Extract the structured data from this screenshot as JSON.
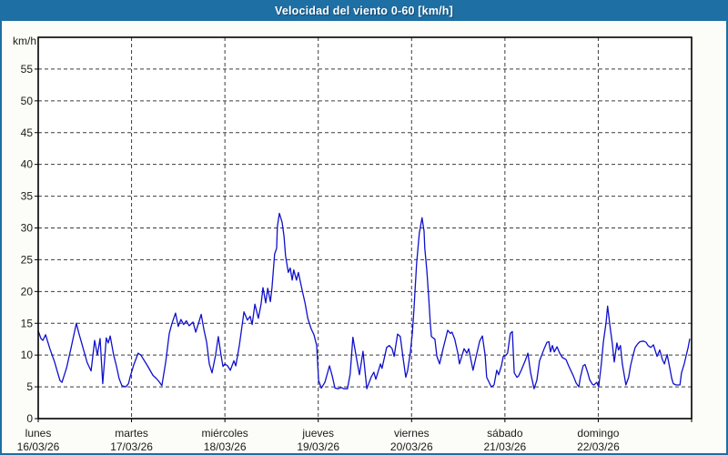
{
  "window": {
    "title": "Velocidad del viento 0-60 [km/h]"
  },
  "colors": {
    "titlebar": "#1d6fa4",
    "border": "#1d6fa4",
    "background": "#fcfcf8",
    "plot_background": "#ffffff",
    "frame": "#000000",
    "grid": "#3c3c3c",
    "line": "#1010cc",
    "text": "#1a1a1a"
  },
  "chart_data": {
    "type": "line",
    "title": "Velocidad del viento 0-60 [km/h]",
    "ylabel": "km/h",
    "xlabel": "",
    "ylim": [
      0,
      60
    ],
    "xlim": [
      0,
      168
    ],
    "grid": true,
    "legend_position": "none",
    "y_tick_labels": [
      0,
      5,
      10,
      15,
      20,
      25,
      30,
      35,
      40,
      45,
      50,
      55
    ],
    "x_unit": "hours",
    "day_labels": [
      {
        "name": "lunes",
        "date": "16/03/26",
        "hour": 0
      },
      {
        "name": "martes",
        "date": "17/03/26",
        "hour": 24
      },
      {
        "name": "miércoles",
        "date": "18/03/26",
        "hour": 48
      },
      {
        "name": "jueves",
        "date": "19/03/26",
        "hour": 72
      },
      {
        "name": "viernes",
        "date": "20/03/26",
        "hour": 96
      },
      {
        "name": "sábado",
        "date": "21/03/26",
        "hour": 120
      },
      {
        "name": "domingo",
        "date": "22/03/26",
        "hour": 144
      }
    ],
    "series": [
      {
        "name": "Velocidad del viento",
        "color": "#1010cc",
        "points": [
          [
            0,
            13.8
          ],
          [
            0.7,
            12.6
          ],
          [
            1.2,
            12.3
          ],
          [
            1.9,
            13.2
          ],
          [
            3.0,
            11.0
          ],
          [
            4.2,
            8.9
          ],
          [
            5.1,
            7.0
          ],
          [
            5.6,
            6.0
          ],
          [
            6.1,
            5.7
          ],
          [
            7.3,
            8.0
          ],
          [
            8.4,
            11.0
          ],
          [
            9.1,
            13.0
          ],
          [
            9.8,
            15.0
          ],
          [
            10.5,
            13.3
          ],
          [
            11.2,
            11.8
          ],
          [
            12.6,
            8.8
          ],
          [
            13.6,
            7.5
          ],
          [
            14.5,
            12.3
          ],
          [
            15.2,
            10.0
          ],
          [
            15.9,
            12.6
          ],
          [
            16.6,
            5.5
          ],
          [
            17.5,
            12.7
          ],
          [
            18.0,
            11.9
          ],
          [
            18.5,
            13.0
          ],
          [
            19.4,
            10.0
          ],
          [
            20.1,
            8.3
          ],
          [
            20.8,
            6.3
          ],
          [
            21.5,
            5.2
          ],
          [
            22.5,
            5.0
          ],
          [
            23.2,
            5.5
          ],
          [
            23.6,
            6.5
          ],
          [
            24.6,
            8.5
          ],
          [
            25.7,
            10.3
          ],
          [
            26.4,
            10.0
          ],
          [
            28.1,
            8.3
          ],
          [
            29.5,
            6.8
          ],
          [
            30.4,
            6.3
          ],
          [
            31.1,
            5.8
          ],
          [
            31.8,
            5.2
          ],
          [
            32.8,
            9.0
          ],
          [
            33.7,
            13.4
          ],
          [
            34.4,
            15.0
          ],
          [
            35.3,
            16.6
          ],
          [
            36.0,
            14.5
          ],
          [
            36.7,
            15.6
          ],
          [
            37.4,
            14.8
          ],
          [
            38.1,
            15.4
          ],
          [
            38.8,
            14.6
          ],
          [
            39.8,
            15.2
          ],
          [
            40.5,
            13.6
          ],
          [
            41.2,
            15.0
          ],
          [
            41.9,
            16.4
          ],
          [
            42.6,
            14.0
          ],
          [
            43.3,
            12.0
          ],
          [
            44.0,
            8.6
          ],
          [
            44.7,
            7.2
          ],
          [
            45.6,
            10.0
          ],
          [
            46.3,
            12.9
          ],
          [
            47.0,
            10.0
          ],
          [
            47.5,
            8.2
          ],
          [
            48.0,
            8.6
          ],
          [
            48.7,
            8.3
          ],
          [
            49.4,
            7.6
          ],
          [
            50.3,
            9.1
          ],
          [
            50.8,
            8.3
          ],
          [
            51.7,
            11.5
          ],
          [
            52.9,
            16.8
          ],
          [
            53.8,
            15.5
          ],
          [
            54.5,
            16.1
          ],
          [
            55.0,
            14.8
          ],
          [
            55.7,
            18.0
          ],
          [
            56.6,
            15.8
          ],
          [
            57.3,
            18.0
          ],
          [
            57.8,
            20.6
          ],
          [
            58.5,
            18.2
          ],
          [
            59.0,
            20.5
          ],
          [
            59.7,
            18.4
          ],
          [
            60.1,
            20.6
          ],
          [
            60.8,
            25.9
          ],
          [
            61.3,
            26.8
          ],
          [
            61.5,
            30.2
          ],
          [
            62.0,
            32.3
          ],
          [
            62.7,
            30.9
          ],
          [
            63.2,
            28.7
          ],
          [
            63.6,
            25.6
          ],
          [
            64.3,
            23.0
          ],
          [
            64.8,
            23.7
          ],
          [
            65.3,
            21.8
          ],
          [
            65.7,
            23.4
          ],
          [
            66.4,
            21.8
          ],
          [
            66.9,
            23.0
          ],
          [
            67.9,
            20.1
          ],
          [
            68.6,
            18.2
          ],
          [
            69.3,
            15.8
          ],
          [
            70.2,
            14.1
          ],
          [
            70.9,
            13.2
          ],
          [
            71.6,
            11.5
          ],
          [
            72.1,
            6.0
          ],
          [
            72.8,
            4.8
          ],
          [
            73.7,
            5.7
          ],
          [
            74.9,
            8.3
          ],
          [
            75.6,
            6.7
          ],
          [
            76.3,
            4.8
          ],
          [
            77.2,
            4.7
          ],
          [
            77.9,
            4.9
          ],
          [
            78.6,
            4.7
          ],
          [
            79.5,
            4.7
          ],
          [
            80.2,
            7.0
          ],
          [
            80.9,
            12.8
          ],
          [
            81.9,
            9.3
          ],
          [
            82.6,
            6.9
          ],
          [
            83.5,
            10.6
          ],
          [
            84.5,
            4.7
          ],
          [
            85.6,
            6.5
          ],
          [
            86.3,
            7.3
          ],
          [
            86.8,
            6.2
          ],
          [
            88.0,
            8.6
          ],
          [
            88.4,
            7.9
          ],
          [
            89.6,
            11.2
          ],
          [
            90.3,
            11.5
          ],
          [
            91.0,
            11.0
          ],
          [
            91.5,
            9.8
          ],
          [
            92.4,
            13.3
          ],
          [
            93.1,
            12.9
          ],
          [
            93.8,
            9.6
          ],
          [
            94.5,
            6.5
          ],
          [
            95.0,
            7.6
          ],
          [
            95.7,
            10.5
          ],
          [
            96.2,
            13.4
          ],
          [
            96.6,
            17.2
          ],
          [
            97.3,
            24.4
          ],
          [
            98.0,
            29.2
          ],
          [
            98.7,
            31.6
          ],
          [
            99.2,
            29.5
          ],
          [
            99.4,
            26.8
          ],
          [
            99.9,
            23.4
          ],
          [
            100.4,
            19.1
          ],
          [
            100.8,
            15.1
          ],
          [
            101.1,
            12.9
          ],
          [
            102.0,
            12.5
          ],
          [
            102.5,
            9.8
          ],
          [
            103.2,
            8.6
          ],
          [
            104.1,
            11.0
          ],
          [
            105.3,
            13.9
          ],
          [
            106.0,
            13.4
          ],
          [
            106.4,
            13.6
          ],
          [
            107.1,
            12.5
          ],
          [
            107.9,
            10.3
          ],
          [
            108.3,
            8.6
          ],
          [
            109.5,
            11.0
          ],
          [
            110.2,
            10.3
          ],
          [
            110.7,
            11.0
          ],
          [
            111.8,
            7.6
          ],
          [
            113.5,
            12.2
          ],
          [
            114.2,
            13.0
          ],
          [
            114.9,
            10.0
          ],
          [
            115.3,
            6.5
          ],
          [
            116.5,
            5.0
          ],
          [
            117.2,
            5.3
          ],
          [
            117.9,
            7.6
          ],
          [
            118.4,
            6.9
          ],
          [
            119.1,
            8.3
          ],
          [
            119.6,
            9.8
          ],
          [
            120.3,
            10.0
          ],
          [
            120.7,
            10.3
          ],
          [
            121.4,
            13.4
          ],
          [
            121.9,
            13.7
          ],
          [
            122.4,
            7.2
          ],
          [
            123.1,
            6.5
          ],
          [
            123.5,
            6.7
          ],
          [
            124.2,
            7.6
          ],
          [
            125.2,
            9.1
          ],
          [
            125.9,
            10.3
          ],
          [
            126.6,
            7.2
          ],
          [
            127.5,
            4.7
          ],
          [
            128.2,
            6.0
          ],
          [
            128.9,
            9.1
          ],
          [
            130.1,
            11.0
          ],
          [
            130.8,
            12.0
          ],
          [
            131.3,
            12.1
          ],
          [
            131.7,
            10.5
          ],
          [
            132.2,
            11.5
          ],
          [
            132.7,
            10.5
          ],
          [
            133.4,
            11.3
          ],
          [
            134.1,
            10.3
          ],
          [
            134.8,
            9.6
          ],
          [
            135.7,
            9.3
          ],
          [
            136.4,
            8.3
          ],
          [
            137.6,
            6.7
          ],
          [
            138.3,
            5.6
          ],
          [
            139.0,
            5.0
          ],
          [
            139.4,
            6.5
          ],
          [
            140.1,
            8.3
          ],
          [
            140.6,
            8.5
          ],
          [
            141.3,
            7.2
          ],
          [
            141.8,
            6.1
          ],
          [
            142.5,
            5.4
          ],
          [
            142.9,
            5.3
          ],
          [
            143.6,
            5.7
          ],
          [
            144.1,
            5.0
          ],
          [
            144.8,
            8.6
          ],
          [
            145.3,
            12.0
          ],
          [
            146.0,
            15.1
          ],
          [
            146.4,
            17.7
          ],
          [
            147.1,
            14.1
          ],
          [
            147.6,
            11.9
          ],
          [
            148.1,
            8.9
          ],
          [
            148.8,
            11.9
          ],
          [
            149.2,
            10.8
          ],
          [
            149.7,
            11.5
          ],
          [
            150.2,
            8.6
          ],
          [
            151.1,
            5.3
          ],
          [
            151.8,
            6.5
          ],
          [
            152.3,
            8.3
          ],
          [
            153.0,
            10.1
          ],
          [
            153.5,
            11.2
          ],
          [
            154.2,
            11.8
          ],
          [
            154.7,
            12.1
          ],
          [
            155.6,
            12.2
          ],
          [
            156.3,
            12.0
          ],
          [
            156.8,
            11.5
          ],
          [
            157.5,
            11.2
          ],
          [
            158.2,
            11.6
          ],
          [
            159.1,
            9.8
          ],
          [
            159.8,
            10.8
          ],
          [
            160.5,
            9.3
          ],
          [
            161.0,
            8.6
          ],
          [
            161.7,
            10.1
          ],
          [
            162.4,
            7.9
          ],
          [
            162.9,
            6.3
          ],
          [
            163.3,
            5.5
          ],
          [
            164.0,
            5.3
          ],
          [
            165.0,
            5.3
          ],
          [
            165.4,
            7.2
          ],
          [
            166.1,
            8.6
          ],
          [
            166.6,
            9.9
          ],
          [
            167.1,
            11.2
          ],
          [
            167.5,
            12.5
          ]
        ]
      }
    ]
  }
}
